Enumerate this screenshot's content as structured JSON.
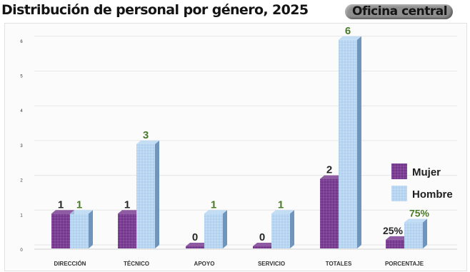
{
  "header": {
    "title": "Distribución de personal  por género, 2025",
    "office_label": "Oficina central"
  },
  "colors": {
    "mujer": "#7b3f93",
    "mujer_dark": "#55276a",
    "hombre": "#b9d7f3",
    "hombre_dark": "#6f95bc",
    "value_label_green": "#4a7a2a",
    "value_label_dark": "#262626"
  },
  "chart_data": {
    "type": "bar",
    "title": "Distribución de personal  por género, 2025",
    "categories": [
      "DIRECCIÓN",
      "TÉCNICO",
      "APOYO",
      "SERVICIO",
      "TOTALES",
      "PORCENTAJE"
    ],
    "series": [
      {
        "name": "Mujer",
        "values": [
          1,
          1,
          0,
          0,
          2,
          0.25
        ]
      },
      {
        "name": "Hombre",
        "values": [
          1,
          3,
          1,
          1,
          6,
          0.75
        ]
      }
    ],
    "data_labels": {
      "Mujer": [
        "1",
        "1",
        "0",
        "0",
        "2",
        "25%"
      ],
      "Hombre": [
        "1",
        "3",
        "1",
        "1",
        "6",
        "75%"
      ]
    },
    "y_ticks": [
      "0",
      "1",
      "2",
      "3",
      "4",
      "5",
      "6"
    ],
    "ylim": [
      0,
      6
    ],
    "grid": true,
    "legend_position": "right",
    "xlabel": "",
    "ylabel": ""
  }
}
